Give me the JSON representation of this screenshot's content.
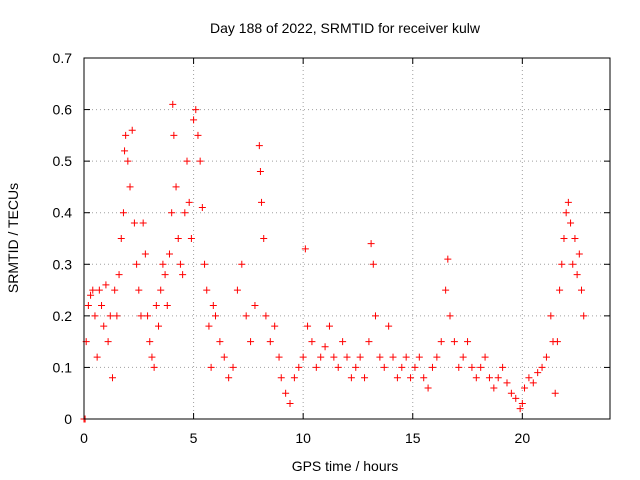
{
  "chart_data": {
    "type": "scatter",
    "title": "Day 188 of 2022, SRMTID for receiver kulw",
    "xlabel": "GPS time / hours",
    "ylabel": "SRMTID / TECUs",
    "xlim": [
      0,
      24
    ],
    "ylim": [
      0,
      0.7
    ],
    "x_ticks": [
      "0",
      "5",
      "10",
      "15",
      "20"
    ],
    "y_ticks": [
      "0",
      "0.1",
      "0.2",
      "0.3",
      "0.4",
      "0.5",
      "0.6",
      "0.7"
    ],
    "grid": true,
    "marker": "+",
    "color": "#ff0000",
    "series": [
      {
        "name": "SRMTID",
        "points": [
          [
            0.0,
            0.0
          ],
          [
            0.05,
            0.0
          ],
          [
            0.1,
            0.15
          ],
          [
            0.2,
            0.22
          ],
          [
            0.3,
            0.24
          ],
          [
            0.4,
            0.25
          ],
          [
            0.5,
            0.2
          ],
          [
            0.6,
            0.12
          ],
          [
            0.7,
            0.25
          ],
          [
            0.8,
            0.22
          ],
          [
            0.9,
            0.18
          ],
          [
            1.0,
            0.26
          ],
          [
            1.1,
            0.15
          ],
          [
            1.2,
            0.2
          ],
          [
            1.3,
            0.08
          ],
          [
            1.4,
            0.25
          ],
          [
            1.5,
            0.2
          ],
          [
            1.6,
            0.28
          ],
          [
            1.7,
            0.35
          ],
          [
            1.8,
            0.4
          ],
          [
            1.85,
            0.52
          ],
          [
            1.9,
            0.55
          ],
          [
            2.0,
            0.5
          ],
          [
            2.1,
            0.45
          ],
          [
            2.2,
            0.56
          ],
          [
            2.3,
            0.38
          ],
          [
            2.4,
            0.3
          ],
          [
            2.5,
            0.25
          ],
          [
            2.6,
            0.2
          ],
          [
            2.7,
            0.38
          ],
          [
            2.8,
            0.32
          ],
          [
            2.9,
            0.2
          ],
          [
            3.0,
            0.15
          ],
          [
            3.1,
            0.12
          ],
          [
            3.2,
            0.1
          ],
          [
            3.3,
            0.22
          ],
          [
            3.4,
            0.18
          ],
          [
            3.5,
            0.25
          ],
          [
            3.6,
            0.3
          ],
          [
            3.7,
            0.28
          ],
          [
            3.8,
            0.22
          ],
          [
            3.9,
            0.32
          ],
          [
            4.0,
            0.4
          ],
          [
            4.05,
            0.61
          ],
          [
            4.1,
            0.55
          ],
          [
            4.2,
            0.45
          ],
          [
            4.3,
            0.35
          ],
          [
            4.4,
            0.3
          ],
          [
            4.5,
            0.28
          ],
          [
            4.6,
            0.4
          ],
          [
            4.7,
            0.5
          ],
          [
            4.8,
            0.42
          ],
          [
            4.9,
            0.35
          ],
          [
            5.0,
            0.58
          ],
          [
            5.1,
            0.6
          ],
          [
            5.2,
            0.55
          ],
          [
            5.3,
            0.5
          ],
          [
            5.4,
            0.41
          ],
          [
            5.5,
            0.3
          ],
          [
            5.6,
            0.25
          ],
          [
            5.7,
            0.18
          ],
          [
            5.8,
            0.1
          ],
          [
            5.9,
            0.22
          ],
          [
            6.0,
            0.2
          ],
          [
            6.2,
            0.15
          ],
          [
            6.4,
            0.12
          ],
          [
            6.6,
            0.08
          ],
          [
            6.8,
            0.1
          ],
          [
            7.0,
            0.25
          ],
          [
            7.2,
            0.3
          ],
          [
            7.4,
            0.2
          ],
          [
            7.6,
            0.15
          ],
          [
            7.8,
            0.22
          ],
          [
            8.0,
            0.53
          ],
          [
            8.05,
            0.48
          ],
          [
            8.1,
            0.42
          ],
          [
            8.2,
            0.35
          ],
          [
            8.3,
            0.2
          ],
          [
            8.5,
            0.15
          ],
          [
            8.7,
            0.18
          ],
          [
            8.9,
            0.12
          ],
          [
            9.0,
            0.08
          ],
          [
            9.2,
            0.05
          ],
          [
            9.4,
            0.03
          ],
          [
            9.6,
            0.08
          ],
          [
            9.8,
            0.1
          ],
          [
            10.0,
            0.12
          ],
          [
            10.1,
            0.33
          ],
          [
            10.2,
            0.18
          ],
          [
            10.4,
            0.15
          ],
          [
            10.6,
            0.1
          ],
          [
            10.8,
            0.12
          ],
          [
            11.0,
            0.14
          ],
          [
            11.2,
            0.18
          ],
          [
            11.4,
            0.12
          ],
          [
            11.6,
            0.1
          ],
          [
            11.8,
            0.15
          ],
          [
            12.0,
            0.12
          ],
          [
            12.2,
            0.08
          ],
          [
            12.4,
            0.1
          ],
          [
            12.6,
            0.12
          ],
          [
            12.8,
            0.08
          ],
          [
            13.0,
            0.15
          ],
          [
            13.1,
            0.34
          ],
          [
            13.2,
            0.3
          ],
          [
            13.3,
            0.2
          ],
          [
            13.5,
            0.12
          ],
          [
            13.7,
            0.1
          ],
          [
            13.9,
            0.18
          ],
          [
            14.1,
            0.12
          ],
          [
            14.3,
            0.08
          ],
          [
            14.5,
            0.1
          ],
          [
            14.7,
            0.12
          ],
          [
            14.9,
            0.08
          ],
          [
            15.1,
            0.1
          ],
          [
            15.3,
            0.12
          ],
          [
            15.5,
            0.08
          ],
          [
            15.7,
            0.06
          ],
          [
            15.9,
            0.1
          ],
          [
            16.1,
            0.12
          ],
          [
            16.3,
            0.15
          ],
          [
            16.5,
            0.25
          ],
          [
            16.6,
            0.31
          ],
          [
            16.7,
            0.2
          ],
          [
            16.9,
            0.15
          ],
          [
            17.1,
            0.1
          ],
          [
            17.3,
            0.12
          ],
          [
            17.5,
            0.15
          ],
          [
            17.7,
            0.1
          ],
          [
            17.9,
            0.08
          ],
          [
            18.1,
            0.1
          ],
          [
            18.3,
            0.12
          ],
          [
            18.5,
            0.08
          ],
          [
            18.7,
            0.06
          ],
          [
            18.9,
            0.08
          ],
          [
            19.1,
            0.1
          ],
          [
            19.3,
            0.07
          ],
          [
            19.5,
            0.05
          ],
          [
            19.7,
            0.04
          ],
          [
            19.9,
            0.02
          ],
          [
            20.0,
            0.03
          ],
          [
            20.1,
            0.06
          ],
          [
            20.3,
            0.08
          ],
          [
            20.5,
            0.07
          ],
          [
            20.7,
            0.09
          ],
          [
            20.9,
            0.1
          ],
          [
            21.1,
            0.12
          ],
          [
            21.3,
            0.2
          ],
          [
            21.4,
            0.15
          ],
          [
            21.5,
            0.05
          ],
          [
            21.6,
            0.15
          ],
          [
            21.7,
            0.25
          ],
          [
            21.8,
            0.3
          ],
          [
            21.9,
            0.35
          ],
          [
            22.0,
            0.4
          ],
          [
            22.1,
            0.42
          ],
          [
            22.2,
            0.38
          ],
          [
            22.3,
            0.3
          ],
          [
            22.4,
            0.35
          ],
          [
            22.5,
            0.28
          ],
          [
            22.6,
            0.32
          ],
          [
            22.7,
            0.25
          ],
          [
            22.8,
            0.2
          ]
        ]
      }
    ]
  }
}
